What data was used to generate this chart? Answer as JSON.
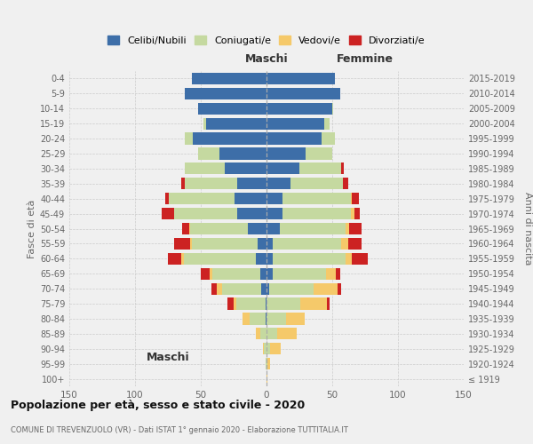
{
  "age_groups": [
    "100+",
    "95-99",
    "90-94",
    "85-89",
    "80-84",
    "75-79",
    "70-74",
    "65-69",
    "60-64",
    "55-59",
    "50-54",
    "45-49",
    "40-44",
    "35-39",
    "30-34",
    "25-29",
    "20-24",
    "15-19",
    "10-14",
    "5-9",
    "0-4"
  ],
  "birth_years": [
    "≤ 1919",
    "1920-1924",
    "1925-1929",
    "1930-1934",
    "1935-1939",
    "1940-1944",
    "1945-1949",
    "1950-1954",
    "1955-1959",
    "1960-1964",
    "1965-1969",
    "1970-1974",
    "1975-1979",
    "1980-1984",
    "1985-1989",
    "1990-1994",
    "1995-1999",
    "2000-2004",
    "2005-2009",
    "2010-2014",
    "2015-2019"
  ],
  "colors": {
    "celibi": "#3d6ea8",
    "coniugati": "#c5d9a0",
    "vedovi": "#f5c96a",
    "divorziati": "#cc2222"
  },
  "maschi": {
    "celibi": [
      0,
      0,
      0,
      0,
      1,
      1,
      4,
      5,
      8,
      7,
      14,
      22,
      24,
      22,
      32,
      36,
      56,
      46,
      52,
      62,
      57
    ],
    "coniugati": [
      0,
      1,
      2,
      5,
      12,
      22,
      30,
      36,
      55,
      50,
      44,
      48,
      50,
      40,
      30,
      16,
      6,
      2,
      0,
      0,
      0
    ],
    "vedovi": [
      0,
      0,
      1,
      3,
      5,
      2,
      4,
      2,
      2,
      1,
      1,
      0,
      0,
      0,
      0,
      0,
      0,
      0,
      0,
      0,
      0
    ],
    "divorziati": [
      0,
      0,
      0,
      0,
      0,
      5,
      4,
      7,
      10,
      12,
      5,
      10,
      3,
      3,
      0,
      0,
      0,
      0,
      0,
      0,
      0
    ]
  },
  "femmine": {
    "celibi": [
      0,
      0,
      0,
      0,
      0,
      0,
      2,
      5,
      5,
      5,
      10,
      12,
      12,
      18,
      25,
      30,
      42,
      44,
      50,
      56,
      52
    ],
    "coniugati": [
      0,
      1,
      3,
      8,
      15,
      26,
      34,
      40,
      55,
      52,
      50,
      52,
      52,
      40,
      32,
      20,
      10,
      4,
      1,
      0,
      0
    ],
    "vedovi": [
      1,
      2,
      8,
      15,
      14,
      20,
      18,
      8,
      5,
      5,
      3,
      3,
      1,
      0,
      0,
      0,
      0,
      0,
      0,
      0,
      0
    ],
    "divorziati": [
      0,
      0,
      0,
      0,
      0,
      2,
      3,
      3,
      12,
      10,
      9,
      4,
      5,
      4,
      2,
      0,
      0,
      0,
      0,
      0,
      0
    ]
  },
  "xlim": 150,
  "title": "Popolazione per età, sesso e stato civile - 2020",
  "subtitle": "COMUNE DI TREVENZUOLO (VR) - Dati ISTAT 1° gennaio 2020 - Elaborazione TUTTITALIA.IT",
  "xlabel_left": "Maschi",
  "xlabel_right": "Femmine",
  "ylabel_left": "Fasce di età",
  "ylabel_right": "Anni di nascita",
  "legend_labels": [
    "Celibi/Nubili",
    "Coniugati/e",
    "Vedovi/e",
    "Divorziati/e"
  ],
  "bg_color": "#f0f0f0",
  "grid_color": "#cccccc"
}
